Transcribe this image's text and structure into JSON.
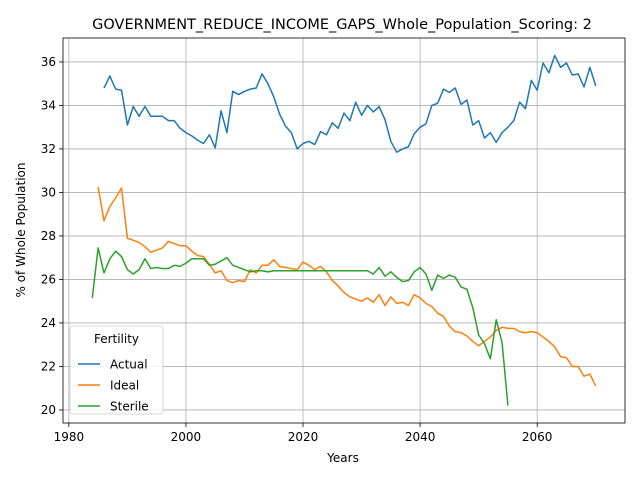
{
  "chart_data": {
    "type": "line",
    "title": "GOVERNMENT_REDUCE_INCOME_GAPS_Whole_Population_Scoring: 2",
    "xlabel": "Years",
    "ylabel": "% of Whole Population",
    "xlim": [
      1979,
      2075
    ],
    "ylim": [
      19.4,
      37.1
    ],
    "xticks": [
      1980,
      2000,
      2020,
      2040,
      2060
    ],
    "yticks": [
      20,
      22,
      24,
      26,
      28,
      30,
      32,
      34,
      36
    ],
    "grid": true,
    "legend": {
      "title": "Fertility",
      "position": "lower-left"
    },
    "series": [
      {
        "name": "Actual",
        "color": "#1f77b4",
        "points": [
          [
            1986,
            34.8
          ],
          [
            1987,
            35.35
          ],
          [
            1988,
            34.75
          ],
          [
            1989,
            34.7
          ],
          [
            1990,
            33.1
          ],
          [
            1991,
            33.95
          ],
          [
            1992,
            33.5
          ],
          [
            1993,
            33.95
          ],
          [
            1994,
            33.5
          ],
          [
            1995,
            33.5
          ],
          [
            1996,
            33.5
          ],
          [
            1997,
            33.3
          ],
          [
            1998,
            33.3
          ],
          [
            1999,
            32.95
          ],
          [
            2000,
            32.75
          ],
          [
            2001,
            32.6
          ],
          [
            2002,
            32.4
          ],
          [
            2003,
            32.25
          ],
          [
            2004,
            32.65
          ],
          [
            2005,
            32.05
          ],
          [
            2006,
            33.75
          ],
          [
            2007,
            32.75
          ],
          [
            2008,
            34.65
          ],
          [
            2009,
            34.5
          ],
          [
            2010,
            34.65
          ],
          [
            2011,
            34.75
          ],
          [
            2012,
            34.8
          ],
          [
            2013,
            35.45
          ],
          [
            2014,
            35.0
          ],
          [
            2015,
            34.4
          ],
          [
            2016,
            33.6
          ],
          [
            2017,
            33.05
          ],
          [
            2018,
            32.75
          ],
          [
            2019,
            32.0
          ],
          [
            2020,
            32.25
          ],
          [
            2021,
            32.35
          ],
          [
            2022,
            32.2
          ],
          [
            2023,
            32.8
          ],
          [
            2024,
            32.65
          ],
          [
            2025,
            33.2
          ],
          [
            2026,
            32.95
          ],
          [
            2027,
            33.65
          ],
          [
            2028,
            33.3
          ],
          [
            2029,
            34.15
          ],
          [
            2030,
            33.55
          ],
          [
            2031,
            34.0
          ],
          [
            2032,
            33.7
          ],
          [
            2033,
            33.95
          ],
          [
            2034,
            33.35
          ],
          [
            2035,
            32.35
          ],
          [
            2036,
            31.85
          ],
          [
            2037,
            32.0
          ],
          [
            2038,
            32.1
          ],
          [
            2039,
            32.7
          ],
          [
            2040,
            33.0
          ],
          [
            2041,
            33.15
          ],
          [
            2042,
            34.0
          ],
          [
            2043,
            34.1
          ],
          [
            2044,
            34.75
          ],
          [
            2045,
            34.6
          ],
          [
            2046,
            34.8
          ],
          [
            2047,
            34.05
          ],
          [
            2048,
            34.25
          ],
          [
            2049,
            33.1
          ],
          [
            2050,
            33.3
          ],
          [
            2051,
            32.5
          ],
          [
            2052,
            32.75
          ],
          [
            2053,
            32.3
          ],
          [
            2054,
            32.75
          ],
          [
            2055,
            33.0
          ],
          [
            2056,
            33.3
          ],
          [
            2057,
            34.15
          ],
          [
            2058,
            33.85
          ],
          [
            2059,
            35.15
          ],
          [
            2060,
            34.7
          ],
          [
            2061,
            35.95
          ],
          [
            2062,
            35.5
          ],
          [
            2063,
            36.3
          ],
          [
            2064,
            35.75
          ],
          [
            2065,
            35.95
          ],
          [
            2066,
            35.4
          ],
          [
            2067,
            35.45
          ],
          [
            2068,
            34.85
          ],
          [
            2069,
            35.75
          ],
          [
            2070,
            34.9
          ]
        ]
      },
      {
        "name": "Ideal",
        "color": "#ff7f0e",
        "points": [
          [
            1985,
            30.25
          ],
          [
            1986,
            28.7
          ],
          [
            1987,
            29.35
          ],
          [
            1988,
            29.75
          ],
          [
            1989,
            30.2
          ],
          [
            1990,
            27.9
          ],
          [
            1991,
            27.8
          ],
          [
            1992,
            27.7
          ],
          [
            1993,
            27.5
          ],
          [
            1994,
            27.25
          ],
          [
            1995,
            27.35
          ],
          [
            1996,
            27.45
          ],
          [
            1997,
            27.75
          ],
          [
            1998,
            27.65
          ],
          [
            1999,
            27.55
          ],
          [
            2000,
            27.55
          ],
          [
            2001,
            27.3
          ],
          [
            2002,
            27.1
          ],
          [
            2003,
            27.05
          ],
          [
            2004,
            26.7
          ],
          [
            2005,
            26.3
          ],
          [
            2006,
            26.4
          ],
          [
            2007,
            25.95
          ],
          [
            2008,
            25.85
          ],
          [
            2009,
            25.95
          ],
          [
            2010,
            25.9
          ],
          [
            2011,
            26.45
          ],
          [
            2012,
            26.3
          ],
          [
            2013,
            26.65
          ],
          [
            2014,
            26.65
          ],
          [
            2015,
            26.9
          ],
          [
            2016,
            26.6
          ],
          [
            2017,
            26.55
          ],
          [
            2018,
            26.5
          ],
          [
            2019,
            26.45
          ],
          [
            2020,
            26.8
          ],
          [
            2021,
            26.65
          ],
          [
            2022,
            26.45
          ],
          [
            2023,
            26.6
          ],
          [
            2024,
            26.35
          ],
          [
            2025,
            25.95
          ],
          [
            2026,
            25.7
          ],
          [
            2027,
            25.4
          ],
          [
            2028,
            25.2
          ],
          [
            2029,
            25.1
          ],
          [
            2030,
            25.0
          ],
          [
            2031,
            25.15
          ],
          [
            2032,
            24.95
          ],
          [
            2033,
            25.3
          ],
          [
            2034,
            24.8
          ],
          [
            2035,
            25.2
          ],
          [
            2036,
            24.9
          ],
          [
            2037,
            24.95
          ],
          [
            2038,
            24.8
          ],
          [
            2039,
            25.3
          ],
          [
            2040,
            25.15
          ],
          [
            2041,
            24.9
          ],
          [
            2042,
            24.75
          ],
          [
            2043,
            24.45
          ],
          [
            2044,
            24.3
          ],
          [
            2045,
            23.85
          ],
          [
            2046,
            23.6
          ],
          [
            2047,
            23.55
          ],
          [
            2048,
            23.4
          ],
          [
            2049,
            23.15
          ],
          [
            2050,
            22.95
          ],
          [
            2051,
            23.15
          ],
          [
            2052,
            23.35
          ],
          [
            2053,
            23.65
          ],
          [
            2054,
            23.8
          ],
          [
            2055,
            23.75
          ],
          [
            2056,
            23.75
          ],
          [
            2057,
            23.6
          ],
          [
            2058,
            23.55
          ],
          [
            2059,
            23.6
          ],
          [
            2060,
            23.55
          ],
          [
            2061,
            23.35
          ],
          [
            2062,
            23.15
          ],
          [
            2063,
            22.9
          ],
          [
            2064,
            22.45
          ],
          [
            2065,
            22.4
          ],
          [
            2066,
            22.0
          ],
          [
            2067,
            22.0
          ],
          [
            2068,
            21.55
          ],
          [
            2069,
            21.65
          ],
          [
            2070,
            21.1
          ]
        ]
      },
      {
        "name": "Sterile",
        "color": "#2ca02c",
        "points": [
          [
            1984,
            25.15
          ],
          [
            1985,
            27.45
          ],
          [
            1986,
            26.3
          ],
          [
            1987,
            26.95
          ],
          [
            1988,
            27.3
          ],
          [
            1989,
            27.05
          ],
          [
            1990,
            26.45
          ],
          [
            1991,
            26.25
          ],
          [
            1992,
            26.45
          ],
          [
            1993,
            26.95
          ],
          [
            1994,
            26.5
          ],
          [
            1995,
            26.55
          ],
          [
            1996,
            26.5
          ],
          [
            1997,
            26.5
          ],
          [
            1998,
            26.65
          ],
          [
            1999,
            26.6
          ],
          [
            2000,
            26.75
          ],
          [
            2001,
            26.95
          ],
          [
            2002,
            26.95
          ],
          [
            2003,
            26.95
          ],
          [
            2004,
            26.65
          ],
          [
            2005,
            26.7
          ],
          [
            2006,
            26.85
          ],
          [
            2007,
            27.0
          ],
          [
            2008,
            26.65
          ],
          [
            2009,
            26.55
          ],
          [
            2010,
            26.45
          ],
          [
            2011,
            26.35
          ],
          [
            2012,
            26.4
          ],
          [
            2013,
            26.4
          ],
          [
            2014,
            26.35
          ],
          [
            2015,
            26.4
          ],
          [
            2016,
            26.4
          ],
          [
            2017,
            26.4
          ],
          [
            2018,
            26.4
          ],
          [
            2019,
            26.4
          ],
          [
            2020,
            26.4
          ],
          [
            2021,
            26.4
          ],
          [
            2022,
            26.4
          ],
          [
            2023,
            26.4
          ],
          [
            2024,
            26.4
          ],
          [
            2025,
            26.4
          ],
          [
            2026,
            26.4
          ],
          [
            2027,
            26.4
          ],
          [
            2028,
            26.4
          ],
          [
            2029,
            26.4
          ],
          [
            2030,
            26.4
          ],
          [
            2031,
            26.4
          ],
          [
            2032,
            26.25
          ],
          [
            2033,
            26.55
          ],
          [
            2034,
            26.15
          ],
          [
            2035,
            26.35
          ],
          [
            2036,
            26.1
          ],
          [
            2037,
            25.9
          ],
          [
            2038,
            25.95
          ],
          [
            2039,
            26.35
          ],
          [
            2040,
            26.55
          ],
          [
            2041,
            26.25
          ],
          [
            2042,
            25.5
          ],
          [
            2043,
            26.2
          ],
          [
            2044,
            26.05
          ],
          [
            2045,
            26.2
          ],
          [
            2046,
            26.1
          ],
          [
            2047,
            25.65
          ],
          [
            2048,
            25.55
          ],
          [
            2049,
            24.7
          ],
          [
            2050,
            23.45
          ],
          [
            2051,
            23.05
          ],
          [
            2052,
            22.35
          ],
          [
            2053,
            24.15
          ],
          [
            2054,
            23.1
          ],
          [
            2055,
            20.2
          ]
        ]
      }
    ]
  }
}
